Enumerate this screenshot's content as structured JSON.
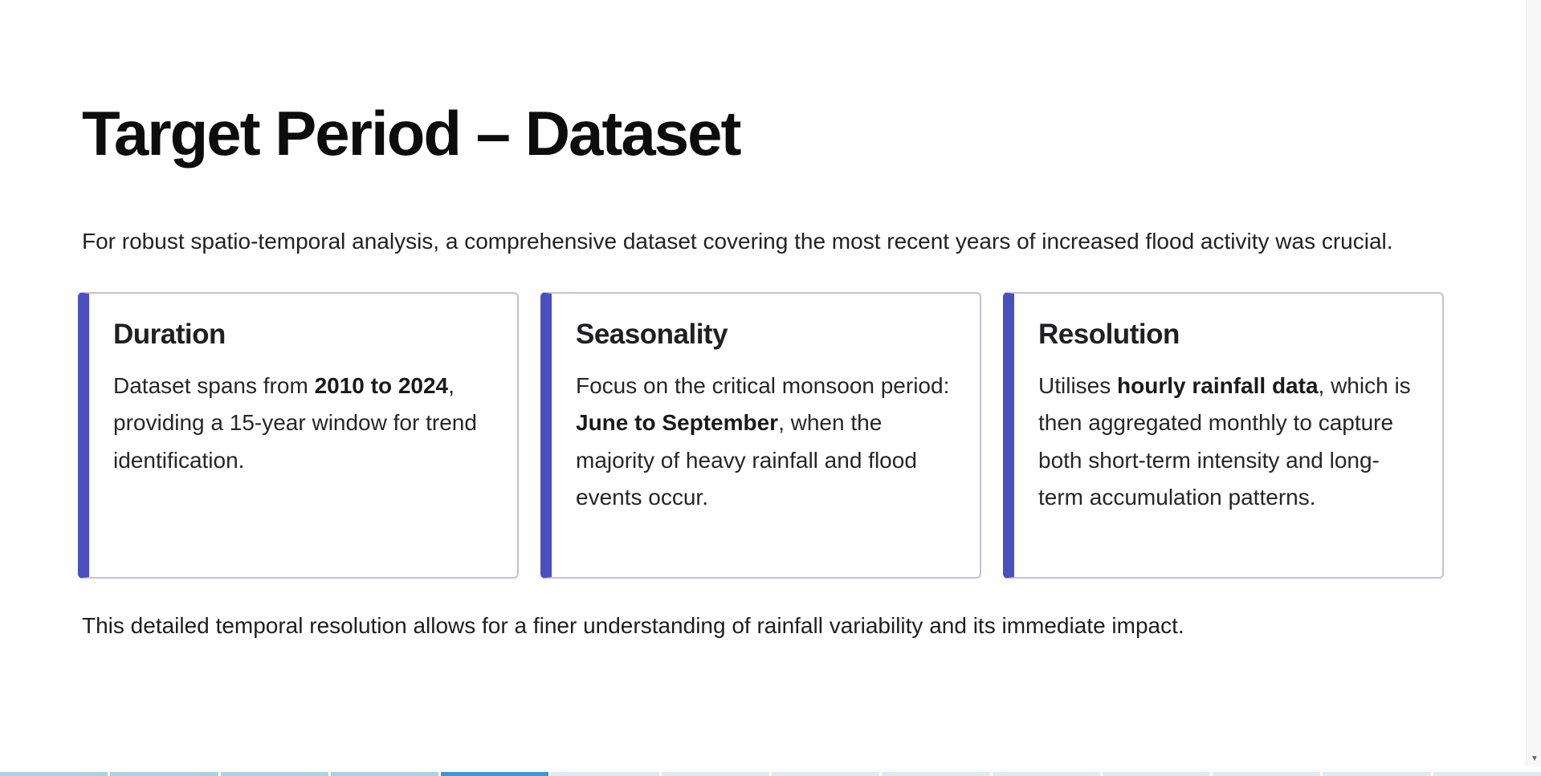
{
  "slide": {
    "title": "Target Period – Dataset",
    "intro": "For robust spatio-temporal analysis, a comprehensive dataset covering the most recent years of increased flood activity was crucial.",
    "footer": "This detailed temporal resolution allows for a finer understanding of rainfall variability and its immediate impact."
  },
  "cards": [
    {
      "title": "Duration",
      "before": "Dataset spans from ",
      "bold": "2010 to 2024",
      "after": ", providing a 15-year window for trend identification."
    },
    {
      "title": "Seasonality",
      "before": "Focus on the critical monsoon period: ",
      "bold": "June to September",
      "after": ", when the majority of heavy rainfall and flood events occur."
    },
    {
      "title": "Resolution",
      "before": "Utilises ",
      "bold": "hourly rainfall data",
      "after": ", which is then aggregated monthly to capture both short-term intensity and long-term accumulation patterns."
    }
  ],
  "colors": {
    "accent": "#4a4fc0",
    "card_border": "#c4c1dc",
    "progress_done": "#a8d2ea",
    "progress_active": "#3f96d6"
  },
  "progress": {
    "total_segments": 14,
    "current_segment": 5
  },
  "icons": {
    "scroll_down": "scroll-down-arrow-icon"
  }
}
